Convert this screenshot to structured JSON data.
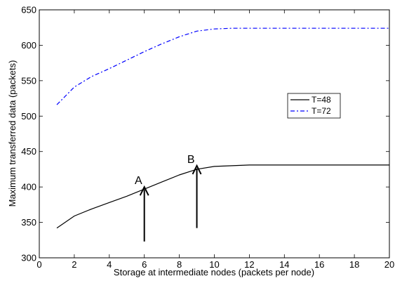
{
  "chart_data": {
    "type": "line",
    "title": "",
    "xlabel": "Storage at intermediate nodes (packets per node)",
    "ylabel": "Maximum  transferred data  (packets)",
    "xlim": [
      0,
      20
    ],
    "ylim": [
      300,
      650
    ],
    "xticks": [
      0,
      2,
      4,
      6,
      8,
      10,
      12,
      14,
      16,
      18,
      20
    ],
    "yticks": [
      300,
      350,
      400,
      450,
      500,
      550,
      600,
      650
    ],
    "grid": false,
    "legend_position": "right",
    "series": [
      {
        "name": "T=48",
        "color": "#000000",
        "dash": "solid",
        "x": [
          1,
          2,
          3,
          4,
          5,
          6,
          7,
          8,
          9,
          10,
          11,
          12,
          13,
          14,
          15,
          16,
          17,
          18,
          19,
          20
        ],
        "values": [
          342,
          359,
          369,
          378,
          387,
          397,
          407,
          417,
          425,
          429,
          430,
          431,
          431,
          431,
          431,
          431,
          431,
          431,
          431,
          431
        ]
      },
      {
        "name": "T=72",
        "color": "#0000ff",
        "dash": "dashdot",
        "x": [
          1,
          2,
          3,
          4,
          5,
          6,
          7,
          8,
          9,
          10,
          11,
          12,
          13,
          14,
          15,
          16,
          17,
          18,
          19,
          20
        ],
        "values": [
          516,
          541,
          556,
          567,
          579,
          591,
          602,
          612,
          620,
          623,
          624,
          624,
          624,
          624,
          624,
          624,
          624,
          624,
          624,
          624
        ]
      }
    ],
    "annotations": [
      {
        "label": "A",
        "x": 6,
        "y": 400,
        "arrow_from_y": 323
      },
      {
        "label": "B",
        "x": 9,
        "y": 430,
        "arrow_from_y": 342
      }
    ]
  }
}
